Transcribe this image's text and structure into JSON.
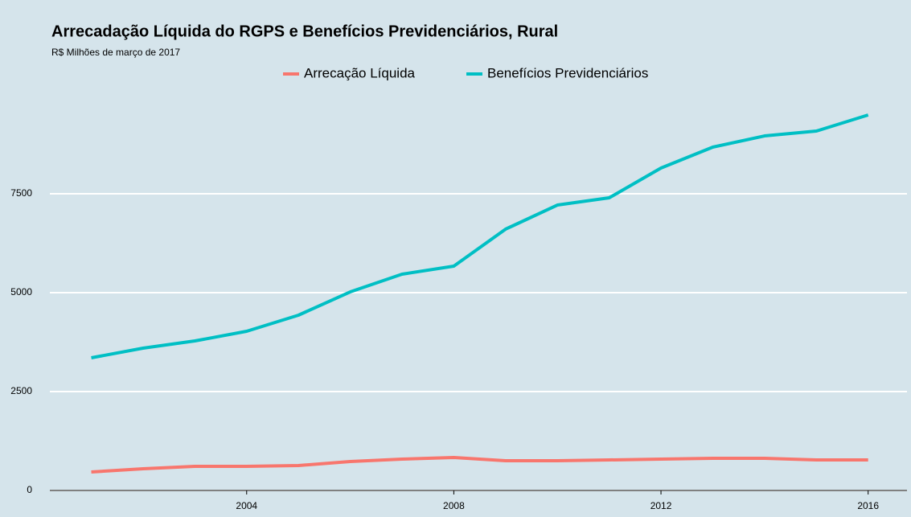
{
  "chart_data": {
    "type": "line",
    "title": "Arrecadação Líquida do RGPS e Benefícios Previdenciários, Rural",
    "subtitle": "R$ Milhões de março de 2017",
    "x": [
      2001,
      2002,
      2003,
      2004,
      2005,
      2006,
      2007,
      2008,
      2009,
      2010,
      2011,
      2012,
      2013,
      2014,
      2015,
      2016
    ],
    "series": [
      {
        "name": "Arrecação Líquida",
        "color": "#f8766d",
        "values": [
          467,
          549,
          610,
          610,
          630,
          732,
          793,
          833,
          752,
          752,
          772,
          793,
          813,
          813,
          772,
          772
        ]
      },
      {
        "name": "Benefícios Previdenciários",
        "color": "#00bfc4",
        "values": [
          3354,
          3598,
          3780,
          4024,
          4431,
          5020,
          5467,
          5671,
          6606,
          7215,
          7398,
          8150,
          8679,
          8963,
          9085,
          9492
        ]
      }
    ],
    "xlim": [
      2000.2,
      2016.75
    ],
    "xticks": [
      2004,
      2008,
      2012,
      2016
    ],
    "ylim": [
      0,
      10000
    ],
    "yticks": [
      0,
      2500,
      5000,
      7500
    ],
    "grid": true,
    "legend": "top"
  }
}
